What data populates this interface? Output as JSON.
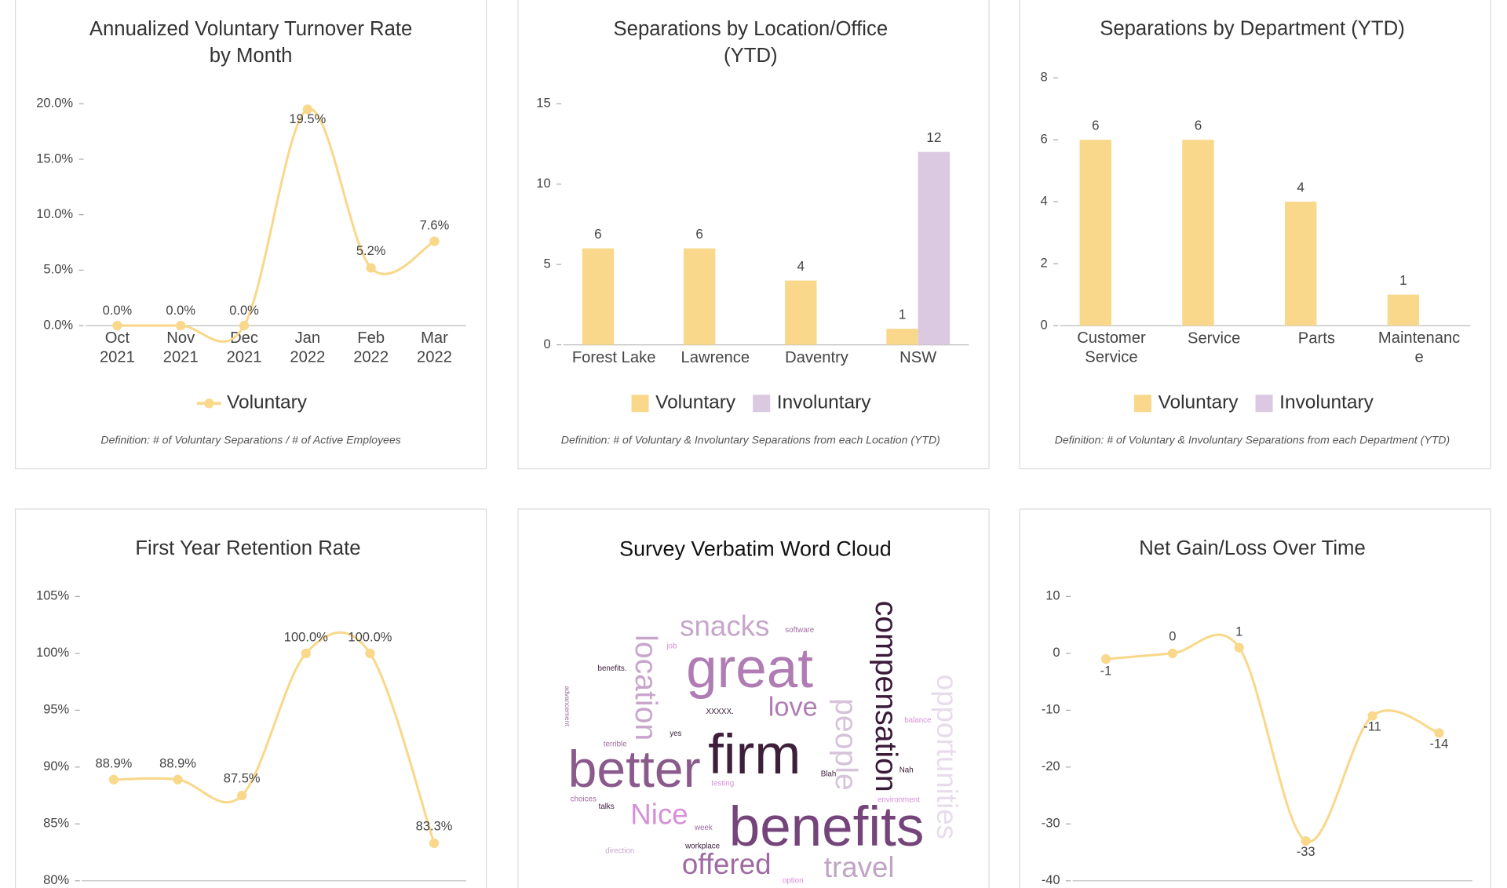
{
  "chart_data": [
    {
      "type": "line",
      "title": "Annualized Voluntary Turnover Rate by Month",
      "categories": [
        "Oct 2021",
        "Nov 2021",
        "Dec 2021",
        "Jan 2022",
        "Feb 2022",
        "Mar 2022"
      ],
      "series": [
        {
          "name": "Voluntary",
          "color": "#f9d88b",
          "values": [
            0,
            0,
            0,
            19.5,
            5.2,
            7.6
          ],
          "value_labels": [
            "0.0%",
            "0.0%",
            "0.0%",
            "19.5%",
            "5.2%",
            "7.6%"
          ]
        }
      ],
      "ylim": [
        0,
        20
      ],
      "yticks": [
        {
          "value": 0,
          "label": "0.0%"
        },
        {
          "value": 5,
          "label": "5.0%"
        },
        {
          "value": 10,
          "label": "10.0%"
        },
        {
          "value": 15,
          "label": "15.0%"
        },
        {
          "value": 20,
          "label": "20.0%"
        }
      ],
      "definition": "Definition:  # of Voluntary Separations / # of Active Employees"
    },
    {
      "type": "bar",
      "title": "Separations by Location/Office (YTD)",
      "categories": [
        "Forest Lake",
        "Lawrence",
        "Daventry",
        "NSW"
      ],
      "series": [
        {
          "name": "Voluntary",
          "color": "#f9d88b",
          "values": [
            6,
            6,
            4,
            1
          ]
        },
        {
          "name": "Involuntary",
          "color": "#dac9e1",
          "values": [
            0,
            0,
            0,
            12
          ]
        }
      ],
      "ylim": [
        0,
        15
      ],
      "yticks": [
        0,
        5,
        10,
        15
      ],
      "definition": "Definition:  # of Voluntary & Involuntary Separations from each Location (YTD)"
    },
    {
      "type": "bar",
      "title": "Separations by Department (YTD)",
      "categories": [
        "Customer Service",
        "Service",
        "Parts",
        "Maintenance"
      ],
      "series": [
        {
          "name": "Voluntary",
          "color": "#f9d88b",
          "values": [
            6,
            6,
            4,
            1
          ]
        },
        {
          "name": "Involuntary",
          "color": "#dac9e1",
          "values": [
            0,
            0,
            0,
            0
          ]
        }
      ],
      "ylim": [
        0,
        8
      ],
      "yticks": [
        0,
        2,
        4,
        6,
        8
      ],
      "definition": "Definition:  # of Voluntary & Involuntary Separations from each Department (YTD)"
    },
    {
      "type": "line",
      "title": "First Year Retention Rate",
      "color": "#f9d88b",
      "values": [
        88.9,
        88.9,
        87.5,
        100,
        100,
        83.3
      ],
      "value_labels": [
        "88.9%",
        "88.9%",
        "87.5%",
        "100.0%",
        "100.0%",
        "83.3%"
      ],
      "ylim": [
        80,
        105
      ],
      "yticks": [
        {
          "value": 80,
          "label": "80%"
        },
        {
          "value": 85,
          "label": "85%"
        },
        {
          "value": 90,
          "label": "90%"
        },
        {
          "value": 95,
          "label": "95%"
        },
        {
          "value": 100,
          "label": "100%"
        },
        {
          "value": 105,
          "label": "105%"
        }
      ]
    },
    {
      "type": "wordcloud",
      "title": "Survey Verbatim Word Cloud",
      "words": [
        {
          "text": "great",
          "size": 58,
          "color": "#b07cb4"
        },
        {
          "text": "firm",
          "size": 58,
          "color": "#3d1f3a"
        },
        {
          "text": "better",
          "size": 54,
          "color": "#8a5a8c"
        },
        {
          "text": "benefits",
          "size": 58,
          "color": "#74447a"
        },
        {
          "text": "compensation",
          "size": 32,
          "color": "#3a1a38"
        },
        {
          "text": "opportunities",
          "size": 30,
          "color": "#e8dcec"
        },
        {
          "text": "location",
          "size": 32,
          "color": "#c8a6cc"
        },
        {
          "text": "people",
          "size": 32,
          "color": "#d6c3da"
        },
        {
          "text": "snacks",
          "size": 30,
          "color": "#c8a6cc"
        },
        {
          "text": "love",
          "size": 28,
          "color": "#b07cb4"
        },
        {
          "text": "Nice",
          "size": 30,
          "color": "#d78fd9"
        },
        {
          "text": "offered",
          "size": 30,
          "color": "#a06aa3"
        },
        {
          "text": "travel",
          "size": 30,
          "color": "#c0a4c4"
        },
        {
          "text": "software",
          "size": 8,
          "color": "#a06aa3"
        },
        {
          "text": "benefits.",
          "size": 8,
          "color": "#3a1a38"
        },
        {
          "text": "advancement",
          "size": 7,
          "color": "#a06aa3"
        },
        {
          "text": "XXXXX.",
          "size": 8,
          "color": "#3a1a38"
        },
        {
          "text": "balance",
          "size": 8,
          "color": "#d78fd9"
        },
        {
          "text": "terrible",
          "size": 8,
          "color": "#a06aa3"
        },
        {
          "text": "testing",
          "size": 8,
          "color": "#d78fd9"
        },
        {
          "text": "Blah",
          "size": 8,
          "color": "#3a1a38"
        },
        {
          "text": "Nah",
          "size": 8,
          "color": "#3a1a38"
        },
        {
          "text": "environment",
          "size": 8,
          "color": "#d78fd9"
        },
        {
          "text": "choices",
          "size": 8,
          "color": "#a06aa3"
        },
        {
          "text": "talks",
          "size": 8,
          "color": "#3a1a38"
        },
        {
          "text": "week",
          "size": 8,
          "color": "#a06aa3"
        },
        {
          "text": "workplace",
          "size": 8,
          "color": "#3a1a38"
        },
        {
          "text": "direction",
          "size": 8,
          "color": "#c8a6cc"
        },
        {
          "text": "option",
          "size": 8,
          "color": "#d78fd9"
        },
        {
          "text": "job",
          "size": 8,
          "color": "#d78fd9"
        },
        {
          "text": "yes",
          "size": 8,
          "color": "#3a1a38"
        }
      ]
    },
    {
      "type": "line",
      "title": "Net Gain/Loss Over Time",
      "color": "#f9d88b",
      "values": [
        -1,
        0,
        1,
        -33,
        -11,
        -14
      ],
      "ylim": [
        -40,
        10
      ],
      "yticks": [
        -40,
        -30,
        -20,
        -10,
        0,
        10
      ]
    }
  ]
}
